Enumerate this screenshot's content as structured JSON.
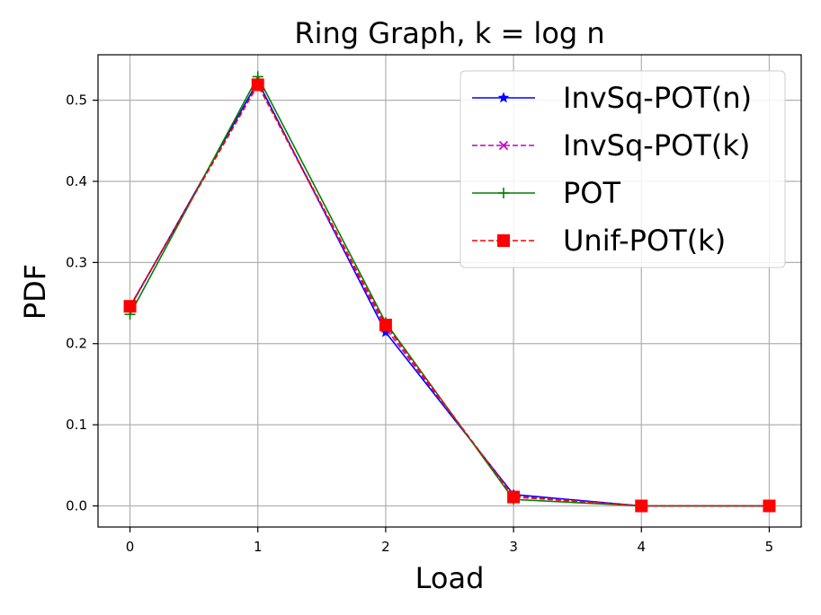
{
  "chart_data": {
    "type": "line",
    "title": "Ring Graph, k = log n",
    "xlabel": "Load",
    "ylabel": "PDF",
    "x": [
      0,
      1,
      2,
      3,
      4,
      5
    ],
    "xlim": [
      -0.25,
      5.25
    ],
    "ylim": [
      -0.026,
      0.556
    ],
    "xticks": [
      "0",
      "1",
      "2",
      "3",
      "4",
      "5"
    ],
    "yticks": [
      "0.0",
      "0.1",
      "0.2",
      "0.3",
      "0.4",
      "0.5"
    ],
    "ytick_values": [
      0.0,
      0.1,
      0.2,
      0.3,
      0.4,
      0.5
    ],
    "grid": true,
    "legend_position": "upper right",
    "series": [
      {
        "name": "InvSq-POT(n)",
        "values": [
          0.245,
          0.523,
          0.214,
          0.014,
          0.0,
          0.0
        ],
        "color": "#0000ff",
        "linestyle": "solid",
        "marker": "star"
      },
      {
        "name": "InvSq-POT(k)",
        "values": [
          0.246,
          0.519,
          0.219,
          0.012,
          0.0,
          0.0
        ],
        "color": "#bf00bf",
        "linestyle": "dashed",
        "marker": "x"
      },
      {
        "name": "POT",
        "values": [
          0.236,
          0.529,
          0.226,
          0.008,
          0.0,
          0.0
        ],
        "color": "#008000",
        "linestyle": "solid",
        "marker": "plus"
      },
      {
        "name": "Unif-POT(k)",
        "values": [
          0.246,
          0.519,
          0.223,
          0.011,
          0.0,
          0.0
        ],
        "color": "#ff0000",
        "linestyle": "dashed",
        "marker": "square"
      }
    ]
  }
}
